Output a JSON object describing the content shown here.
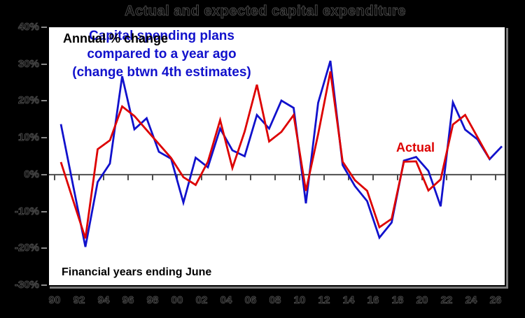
{
  "title": "Actual and expected capital expenditure",
  "colors": {
    "background": "#000000",
    "plot_background": "#ffffff",
    "actual_red": "#dd0000",
    "expected_blue": "#1111cc",
    "zero_axis": "#4d4d4d",
    "outside_tick": "#8a8a8a"
  },
  "plot": {
    "top_left_label": "Annual % change",
    "bottom_left_label": "Financial years ending June",
    "actual_series_label": "Actual",
    "plans_label_line1": "Capital spending plans",
    "plans_label_line2": "compared to a year ago",
    "plans_label_line3": "(change btwn 4th estimates)"
  },
  "chart_data": {
    "type": "line",
    "title": "Actual and expected capital expenditure",
    "ylabel": "Annual % change",
    "xlabel": "Financial years ending June",
    "ylim": [
      -30,
      40
    ],
    "grid": false,
    "ytick_values": [
      40,
      30,
      20,
      10,
      0,
      -10,
      -20,
      -30
    ],
    "ytick_labels": [
      "40%",
      "30%",
      "20%",
      "10%",
      "0%",
      "-10%",
      "-20%",
      "-30%"
    ],
    "xtick_years": [
      1990,
      1992,
      1994,
      1996,
      1998,
      2000,
      2002,
      2004,
      2006,
      2008,
      2010,
      2012,
      2014,
      2016,
      2018,
      2020,
      2022,
      2024,
      2026
    ],
    "xtick_labels": [
      "90",
      "92",
      "94",
      "96",
      "98",
      "00",
      "02",
      "04",
      "06",
      "08",
      "10",
      "12",
      "14",
      "16",
      "18",
      "20",
      "22",
      "24",
      "26"
    ],
    "series": [
      {
        "name": "Capital spending plans compared to a year ago (change btwn 4th estimates)",
        "color": "#1111cc",
        "years": [
          1990,
          1991,
          1992,
          1993,
          1994,
          1995,
          1996,
          1997,
          1998,
          1999,
          2000,
          2001,
          2002,
          2003,
          2004,
          2005,
          2006,
          2007,
          2008,
          2009,
          2010,
          2011,
          2012,
          2013,
          2014,
          2015,
          2016,
          2017,
          2018,
          2019,
          2020,
          2021,
          2022,
          2023,
          2024,
          2025,
          2026
        ],
        "values": [
          13.7,
          -3.0,
          -19.6,
          -2.0,
          3.0,
          26.7,
          12.3,
          15.3,
          6.2,
          4.3,
          -7.6,
          4.6,
          2.0,
          12.5,
          6.6,
          5.0,
          16.2,
          12.5,
          20.1,
          18.1,
          -7.8,
          19.5,
          30.9,
          2.6,
          -3.1,
          -7.2,
          -17.1,
          -13.0,
          3.8,
          4.8,
          1.0,
          -8.6,
          19.6,
          12.2,
          9.6,
          4.2,
          7.7
        ]
      },
      {
        "name": "Actual",
        "color": "#dd0000",
        "years": [
          1990,
          1991,
          1992,
          1993,
          1994,
          1995,
          1996,
          1997,
          1998,
          1999,
          2000,
          2001,
          2002,
          2003,
          2004,
          2005,
          2006,
          2007,
          2008,
          2009,
          2010,
          2011,
          2012,
          2013,
          2014,
          2015,
          2016,
          2017,
          2018,
          2019,
          2020,
          2021,
          2022,
          2023,
          2024,
          2025
        ],
        "values": [
          3.4,
          -7.0,
          -17.3,
          6.9,
          9.3,
          18.5,
          15.9,
          12.1,
          8.3,
          4.5,
          -0.7,
          -2.8,
          3.5,
          14.8,
          1.8,
          11.7,
          24.4,
          9.0,
          11.6,
          16.2,
          -4.4,
          11.0,
          28.0,
          3.5,
          -1.5,
          -4.4,
          -14.3,
          -12.0,
          3.5,
          3.6,
          -4.3,
          -1.3,
          13.6,
          16.2,
          10.2,
          4.2
        ]
      }
    ]
  }
}
